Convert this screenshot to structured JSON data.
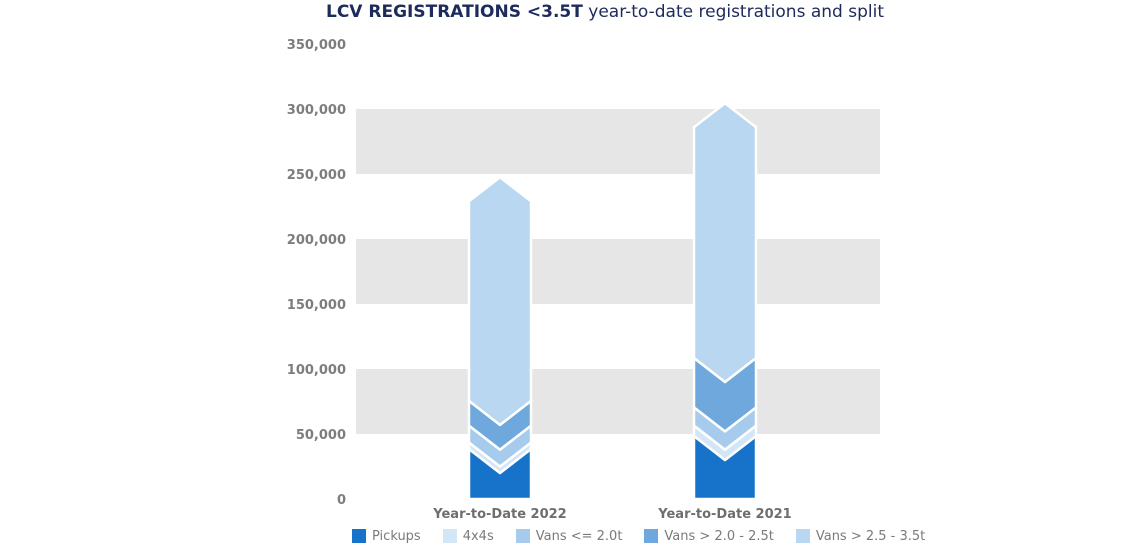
{
  "title": {
    "bold": "LCV REGISTRATIONS <3.5T",
    "rest": " year-to-date registrations and split"
  },
  "chart_data": {
    "type": "bar",
    "stacked": true,
    "categories": [
      "Year-to-Date 2022",
      "Year-to-Date 2021"
    ],
    "series": [
      {
        "name": "Pickups",
        "color": "#1673c9",
        "values": [
          20000,
          30000
        ]
      },
      {
        "name": "4x4s",
        "color": "#d3e6f5",
        "values": [
          5000,
          8000
        ]
      },
      {
        "name": "Vans <= 2.0t",
        "color": "#a6cbec",
        "values": [
          13000,
          14000
        ]
      },
      {
        "name": "Vans > 2.0 - 2.5t",
        "color": "#6ea8dd",
        "values": [
          19000,
          38000
        ]
      },
      {
        "name": "Vans > 2.5 - 3.5t",
        "color": "#b9d7f0",
        "values": [
          172000,
          196000
        ]
      }
    ],
    "totals": [
      229000,
      286000
    ],
    "ylim": [
      0,
      350000
    ],
    "yticks": [
      "0",
      "50,000",
      "100,000",
      "150,000",
      "200,000",
      "250,000",
      "300,000",
      "350,000"
    ],
    "grid": "alternating bands",
    "legend": "bottom"
  }
}
